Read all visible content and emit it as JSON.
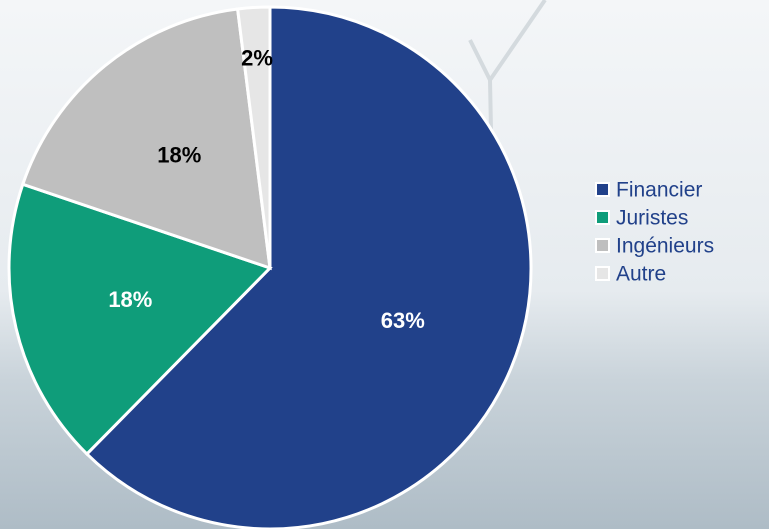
{
  "chart_data": {
    "type": "pie",
    "categories": [
      "Financier",
      "Juristes",
      "Ingénieurs",
      "Autre"
    ],
    "values": [
      63,
      18,
      18,
      2
    ],
    "value_labels": [
      "63%",
      "18%",
      "18%",
      "2%"
    ],
    "colors": [
      "#21418a",
      "#0f9d7a",
      "#bfbfbf",
      "#e6e6e6"
    ],
    "legend": "right"
  }
}
